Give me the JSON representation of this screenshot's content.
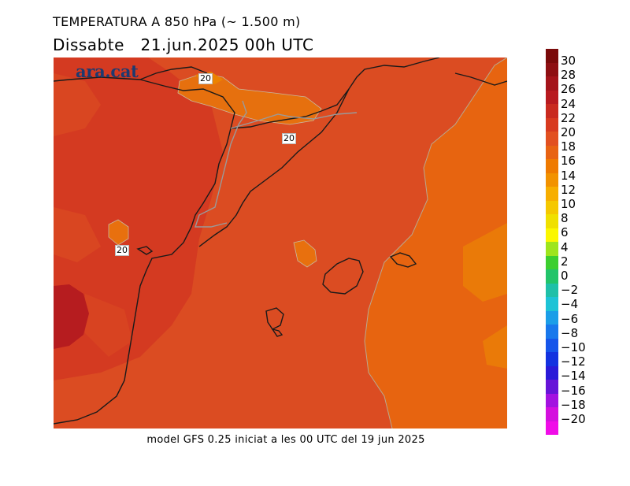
{
  "title_line1": "TEMPERATURA A 850 hPa (~ 1.500 m)",
  "title_line2": "Dissabte   21.jun.2025 00h UTC",
  "logo_text": "ara.cat",
  "contour_labels": [
    "20",
    "20",
    "20"
  ],
  "footer": "model GFS 0.25 iniciat a les 00 UTC del 19 jun 2025",
  "colorbar": {
    "unit_levels": [
      30,
      28,
      26,
      24,
      22,
      20,
      18,
      16,
      14,
      12,
      10,
      8,
      6,
      4,
      2,
      0,
      -2,
      -4,
      -6,
      -8,
      -10,
      -12,
      -14,
      -16,
      -18,
      -20
    ],
    "labels": [
      "30",
      "28",
      "26",
      "24",
      "22",
      "20",
      "18",
      "16",
      "14",
      "12",
      "10",
      "8",
      "6",
      "4",
      "2",
      "0",
      "−2",
      "−4",
      "−6",
      "−8",
      "−10",
      "−12",
      "−14",
      "−16",
      "−18",
      "−20"
    ],
    "colors": [
      "#7a0a0a",
      "#8e0f12",
      "#a4141a",
      "#b81a1f",
      "#c92a1f",
      "#d83a1f",
      "#e25020",
      "#e86312",
      "#ef7a00",
      "#f29200",
      "#f7ae00",
      "#f5c800",
      "#f0e000",
      "#fbf700",
      "#9ee51c",
      "#3ccf2f",
      "#22c46a",
      "#1fc0a8",
      "#1dc3d6",
      "#1b9ee8",
      "#1878ec",
      "#1555ea",
      "#1332e0",
      "#2a1ad8",
      "#6614d8",
      "#a312e0",
      "#d40fde",
      "#f00ce8"
    ]
  }
}
